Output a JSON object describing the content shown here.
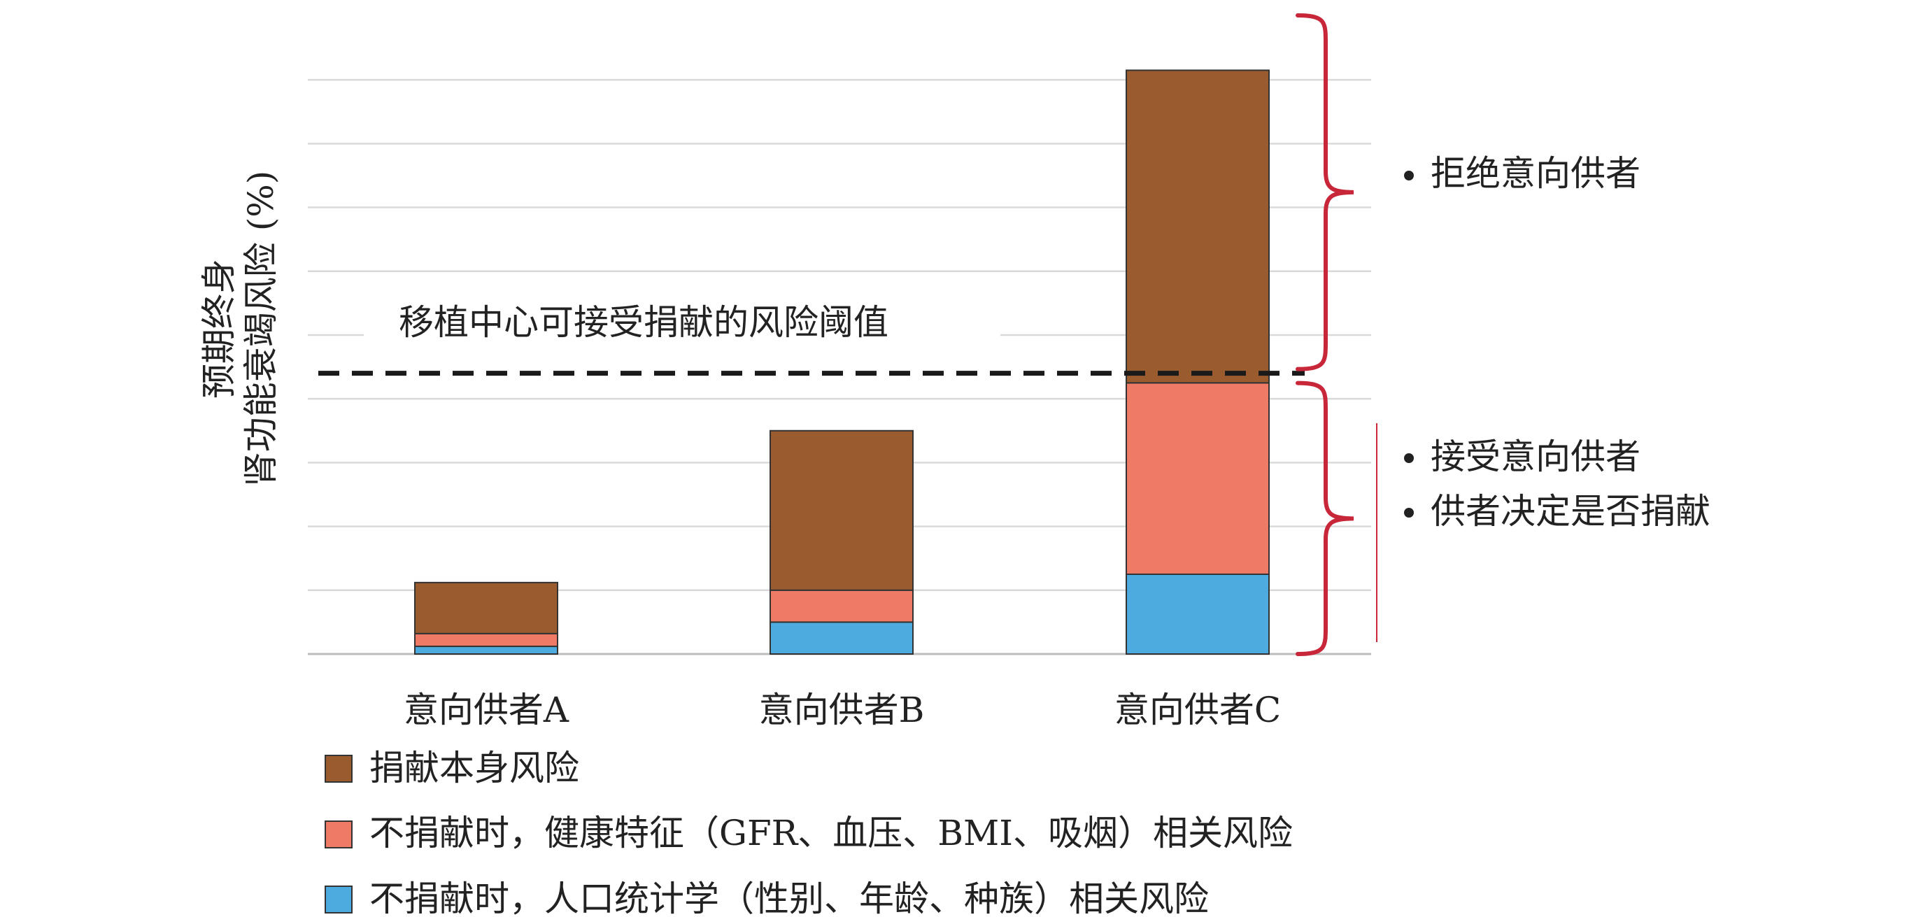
{
  "chart_data": {
    "type": "bar",
    "stacked": true,
    "categories": [
      "意向供者A",
      "意向供者B",
      "意向供者C"
    ],
    "series": [
      {
        "name": "不捐献时，人口统计学（性别、年龄、种族）相关风险",
        "color": "#4eabe0",
        "values": [
          0.12,
          0.5,
          1.25
        ]
      },
      {
        "name": "不捐献时，健康特征（GFR、血压、BMI、吸烟）相关风险",
        "color": "#ef7b67",
        "values": [
          0.2,
          0.5,
          3.0
        ]
      },
      {
        "name": "捐献本身风险",
        "color": "#9a5b2f",
        "values": [
          0.8,
          2.5,
          4.9
        ]
      }
    ],
    "ylabel_line1": "预期终身",
    "ylabel_line2": "肾功能衰竭风险 (%)",
    "ylim": [
      0,
      10
    ],
    "grid": true,
    "threshold": {
      "value": 4.4,
      "label": "移植中心可接受捐献的风险阈值"
    },
    "annotations": {
      "above": [
        "拒绝意向供者"
      ],
      "below": [
        "接受意向供者",
        "供者决定是否捐献"
      ]
    },
    "legend_position": "bottom"
  },
  "colors": {
    "bracket": "#c8273a",
    "grid": "#d9d9d9",
    "threshold": "#1a1a1a"
  }
}
